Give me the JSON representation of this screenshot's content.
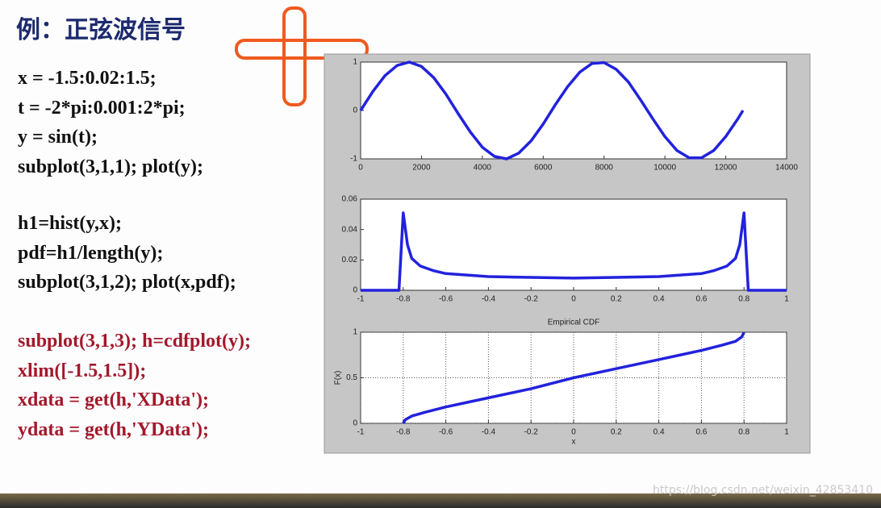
{
  "title": "例：正弦波信号",
  "code_blocks": [
    [
      "x = -1.5:0.02:1.5;",
      "t = -2*pi:0.001:2*pi;",
      "y = sin(t);",
      "subplot(3,1,1); plot(y);"
    ],
    [
      "h1=hist(y,x);",
      "pdf=h1/length(y);",
      "subplot(3,1,2); plot(x,pdf);"
    ],
    [
      "subplot(3,1,3); h=cdfplot(y);",
      "xlim([-1.5,1.5]);",
      "xdata = get(h,'XData');",
      "ydata = get(h,'YData');"
    ]
  ],
  "watermark": "https://blog.csdn.net/weixin_42853410",
  "chart_data": [
    {
      "type": "line",
      "color": "#2222dd",
      "grid": false,
      "x": [
        0,
        400,
        800,
        1200,
        1600,
        2000,
        2400,
        2800,
        3200,
        3600,
        4000,
        4400,
        4800,
        5200,
        5600,
        6000,
        6400,
        6800,
        7200,
        7600,
        8000,
        8400,
        8800,
        9200,
        9600,
        10000,
        10400,
        10800,
        11200,
        11600,
        12000,
        12400,
        12566
      ],
      "values": [
        0,
        0.39,
        0.72,
        0.93,
        1.0,
        0.91,
        0.68,
        0.34,
        -0.06,
        -0.44,
        -0.76,
        -0.95,
        -1.0,
        -0.88,
        -0.63,
        -0.28,
        0.12,
        0.49,
        0.79,
        0.97,
        0.99,
        0.85,
        0.59,
        0.22,
        -0.17,
        -0.54,
        -0.83,
        -0.98,
        -0.98,
        -0.83,
        -0.54,
        -0.17,
        0
      ],
      "xlim": [
        0,
        14000
      ],
      "xticks": [
        0,
        2000,
        4000,
        6000,
        8000,
        10000,
        12000,
        14000
      ],
      "ylim": [
        -1,
        1
      ],
      "yticks": [
        -1,
        0,
        1
      ]
    },
    {
      "type": "line",
      "color": "#2222dd",
      "grid": false,
      "x": [
        -1,
        -0.82,
        -0.8,
        -0.78,
        -0.76,
        -0.72,
        -0.66,
        -0.6,
        -0.5,
        -0.4,
        -0.2,
        0,
        0.2,
        0.4,
        0.5,
        0.6,
        0.66,
        0.72,
        0.76,
        0.78,
        0.8,
        0.82,
        1
      ],
      "values": [
        0,
        0,
        0.051,
        0.03,
        0.021,
        0.016,
        0.013,
        0.011,
        0.01,
        0.009,
        0.0085,
        0.008,
        0.0085,
        0.009,
        0.01,
        0.011,
        0.013,
        0.016,
        0.021,
        0.03,
        0.051,
        0,
        0
      ],
      "xlim": [
        -1,
        1
      ],
      "xticks": [
        -1,
        -0.8,
        -0.6,
        -0.4,
        -0.2,
        0,
        0.2,
        0.4,
        0.6,
        0.8,
        1
      ],
      "ylim": [
        0,
        0.06
      ],
      "yticks": [
        0,
        0.02,
        0.04,
        0.06
      ]
    },
    {
      "type": "line",
      "color": "#2222dd",
      "grid": true,
      "title": "Empirical CDF",
      "xlabel": "x",
      "ylabel": "F(x)",
      "x": [
        -0.8,
        -0.79,
        -0.76,
        -0.7,
        -0.6,
        -0.5,
        -0.4,
        -0.2,
        0,
        0.2,
        0.4,
        0.5,
        0.6,
        0.7,
        0.76,
        0.79,
        0.8
      ],
      "values": [
        0,
        0.04,
        0.08,
        0.12,
        0.18,
        0.23,
        0.28,
        0.38,
        0.5,
        0.6,
        0.7,
        0.75,
        0.8,
        0.86,
        0.9,
        0.95,
        1
      ],
      "xlim": [
        -1,
        1
      ],
      "xticks": [
        -1,
        -0.8,
        -0.6,
        -0.4,
        -0.2,
        0,
        0.2,
        0.4,
        0.6,
        0.8,
        1
      ],
      "ylim": [
        0,
        1
      ],
      "yticks": [
        0,
        0.5,
        1
      ]
    }
  ]
}
